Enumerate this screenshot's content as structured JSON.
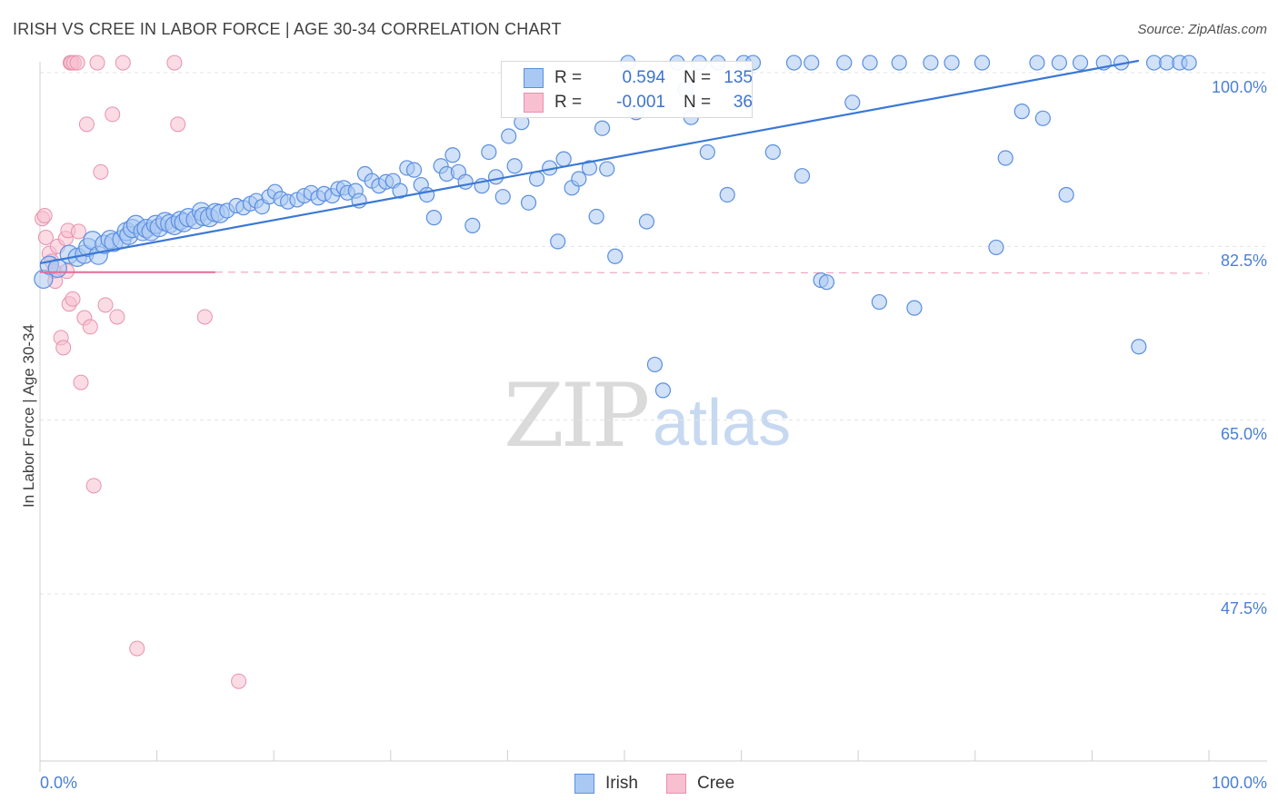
{
  "title": "IRISH VS CREE IN LABOR FORCE | AGE 30-34 CORRELATION CHART",
  "source": "Source: ZipAtlas.com",
  "watermark": {
    "zip": "ZIP",
    "atlas": "atlas"
  },
  "legend": {
    "irish": {
      "r_label": "R =",
      "r_value": "0.594",
      "n_label": "N =",
      "n_value": "135"
    },
    "cree": {
      "r_label": "R =",
      "r_value": "-0.001",
      "n_label": "N =",
      "n_value": "36"
    }
  },
  "bottom_legend": {
    "irish": "Irish",
    "cree": "Cree"
  },
  "colors": {
    "irish_fill": "#a9c8f2",
    "irish_stroke": "#5b8fe0",
    "irish_line": "#3a78d6",
    "cree_fill": "#f8bfd0",
    "cree_stroke": "#e891ae",
    "cree_line": "#e76a98",
    "tick_label": "#4a7fd6"
  },
  "chart_data": {
    "type": "scatter",
    "title": "IRISH VS CREE IN LABOR FORCE | AGE 30-34 CORRELATION CHART",
    "xlabel": "",
    "ylabel": "In Labor Force | Age 30-34",
    "xlim": [
      0,
      100
    ],
    "ylim": [
      31.5,
      101.5
    ],
    "x_tick_labels": [
      "0.0%",
      "100.0%"
    ],
    "y_ticks": [
      47.5,
      65.0,
      82.5,
      100.0
    ],
    "y_tick_labels": [
      "47.5%",
      "65.0%",
      "82.5%",
      "100.0%"
    ],
    "grid": true,
    "series": [
      {
        "name": "Irish",
        "r": 0.594,
        "n": 135,
        "trend": {
          "x": [
            0,
            94
          ],
          "y": [
            80.8,
            101.2
          ]
        },
        "points": [
          [
            0.3,
            79.2
          ],
          [
            0.8,
            80.6
          ],
          [
            1.5,
            80.3
          ],
          [
            2.5,
            81.7
          ],
          [
            3.2,
            81.4
          ],
          [
            3.8,
            81.7
          ],
          [
            4.1,
            82.4
          ],
          [
            4.5,
            83.1
          ],
          [
            5.0,
            81.6
          ],
          [
            5.5,
            82.7
          ],
          [
            6.0,
            83.2
          ],
          [
            6.3,
            82.9
          ],
          [
            7.0,
            83.2
          ],
          [
            7.4,
            84.0
          ],
          [
            7.6,
            83.6
          ],
          [
            7.9,
            84.3
          ],
          [
            8.2,
            84.7
          ],
          [
            8.8,
            84.0
          ],
          [
            9.1,
            84.3
          ],
          [
            9.5,
            84.0
          ],
          [
            9.9,
            84.7
          ],
          [
            10.2,
            84.4
          ],
          [
            10.7,
            85.0
          ],
          [
            11.1,
            84.8
          ],
          [
            11.5,
            84.6
          ],
          [
            12.0,
            85.1
          ],
          [
            12.3,
            84.9
          ],
          [
            12.7,
            85.4
          ],
          [
            13.3,
            85.2
          ],
          [
            13.8,
            86.0
          ],
          [
            14.0,
            85.5
          ],
          [
            14.5,
            85.4
          ],
          [
            15.0,
            85.9
          ],
          [
            15.4,
            85.8
          ],
          [
            16.0,
            86.1
          ],
          [
            16.8,
            86.6
          ],
          [
            17.4,
            86.4
          ],
          [
            18.0,
            86.8
          ],
          [
            18.5,
            87.1
          ],
          [
            19.0,
            86.5
          ],
          [
            19.6,
            87.5
          ],
          [
            20.1,
            88.0
          ],
          [
            20.6,
            87.3
          ],
          [
            21.2,
            87.0
          ],
          [
            22.0,
            87.2
          ],
          [
            22.6,
            87.6
          ],
          [
            23.2,
            87.9
          ],
          [
            23.8,
            87.4
          ],
          [
            24.3,
            87.8
          ],
          [
            25.0,
            87.6
          ],
          [
            25.5,
            88.3
          ],
          [
            26.0,
            88.4
          ],
          [
            26.3,
            87.9
          ],
          [
            27.0,
            88.1
          ],
          [
            27.3,
            87.1
          ],
          [
            27.8,
            89.8
          ],
          [
            28.4,
            89.1
          ],
          [
            29.0,
            88.6
          ],
          [
            29.6,
            89.0
          ],
          [
            30.2,
            89.1
          ],
          [
            30.8,
            88.1
          ],
          [
            31.4,
            90.4
          ],
          [
            32.0,
            90.2
          ],
          [
            32.6,
            88.7
          ],
          [
            33.1,
            87.7
          ],
          [
            33.7,
            85.4
          ],
          [
            34.3,
            90.6
          ],
          [
            34.8,
            89.8
          ],
          [
            35.3,
            91.7
          ],
          [
            35.8,
            90.0
          ],
          [
            36.4,
            89.0
          ],
          [
            37.0,
            84.6
          ],
          [
            37.8,
            88.6
          ],
          [
            38.4,
            92.0
          ],
          [
            39.0,
            89.5
          ],
          [
            39.6,
            87.5
          ],
          [
            40.1,
            93.6
          ],
          [
            40.6,
            90.6
          ],
          [
            41.2,
            95.0
          ],
          [
            41.8,
            86.9
          ],
          [
            42.5,
            89.3
          ],
          [
            43.6,
            90.4
          ],
          [
            44.3,
            83.0
          ],
          [
            44.8,
            91.3
          ],
          [
            45.5,
            88.4
          ],
          [
            46.1,
            89.3
          ],
          [
            47.0,
            90.4
          ],
          [
            47.6,
            85.5
          ],
          [
            48.1,
            94.4
          ],
          [
            48.5,
            90.3
          ],
          [
            49.2,
            81.5
          ],
          [
            50.3,
            101.0
          ],
          [
            51.0,
            96.0
          ],
          [
            51.9,
            85.0
          ],
          [
            52.6,
            70.6
          ],
          [
            53.3,
            68.0
          ],
          [
            54.5,
            101.0
          ],
          [
            55.2,
            98.3
          ],
          [
            55.7,
            95.5
          ],
          [
            56.4,
            101.0
          ],
          [
            57.1,
            92.0
          ],
          [
            58.0,
            101.0
          ],
          [
            58.8,
            87.7
          ],
          [
            60.2,
            101.0
          ],
          [
            61.0,
            101.0
          ],
          [
            62.7,
            92.0
          ],
          [
            64.5,
            101.0
          ],
          [
            65.2,
            89.6
          ],
          [
            66.0,
            101.0
          ],
          [
            66.8,
            79.1
          ],
          [
            67.3,
            78.9
          ],
          [
            68.8,
            101.0
          ],
          [
            69.5,
            97.0
          ],
          [
            71.0,
            101.0
          ],
          [
            71.8,
            76.9
          ],
          [
            73.5,
            101.0
          ],
          [
            74.8,
            76.3
          ],
          [
            76.2,
            101.0
          ],
          [
            78.0,
            101.0
          ],
          [
            80.6,
            101.0
          ],
          [
            81.8,
            82.4
          ],
          [
            82.6,
            91.4
          ],
          [
            84.0,
            96.1
          ],
          [
            85.3,
            101.0
          ],
          [
            85.8,
            95.4
          ],
          [
            87.2,
            101.0
          ],
          [
            87.8,
            87.7
          ],
          [
            89.0,
            101.0
          ],
          [
            91.0,
            101.0
          ],
          [
            92.5,
            101.0
          ],
          [
            94.0,
            72.4
          ],
          [
            95.3,
            101.0
          ],
          [
            96.4,
            101.0
          ],
          [
            97.5,
            101.0
          ],
          [
            98.3,
            101.0
          ]
        ]
      },
      {
        "name": "Cree",
        "r": -0.001,
        "n": 36,
        "trend": {
          "x": [
            0,
            100
          ],
          "y": [
            79.9,
            79.8
          ]
        },
        "points": [
          [
            0.2,
            85.3
          ],
          [
            0.4,
            85.6
          ],
          [
            0.5,
            83.4
          ],
          [
            0.8,
            81.8
          ],
          [
            1.0,
            81.0
          ],
          [
            1.2,
            80.0
          ],
          [
            1.3,
            79.0
          ],
          [
            1.5,
            82.5
          ],
          [
            1.8,
            73.3
          ],
          [
            2.0,
            72.3
          ],
          [
            2.2,
            83.3
          ],
          [
            2.3,
            80.0
          ],
          [
            2.4,
            84.1
          ],
          [
            2.5,
            76.7
          ],
          [
            2.6,
            101.0
          ],
          [
            2.7,
            101.0
          ],
          [
            2.8,
            77.2
          ],
          [
            2.9,
            101.0
          ],
          [
            3.2,
            101.0
          ],
          [
            3.3,
            84.0
          ],
          [
            3.5,
            68.8
          ],
          [
            3.8,
            75.3
          ],
          [
            4.0,
            94.8
          ],
          [
            4.3,
            74.4
          ],
          [
            4.6,
            58.4
          ],
          [
            4.9,
            101.0
          ],
          [
            5.2,
            90.0
          ],
          [
            5.6,
            76.6
          ],
          [
            6.2,
            95.8
          ],
          [
            6.6,
            75.4
          ],
          [
            7.1,
            101.0
          ],
          [
            8.3,
            42.0
          ],
          [
            11.5,
            101.0
          ],
          [
            11.8,
            94.8
          ],
          [
            14.1,
            75.4
          ],
          [
            17.0,
            38.7
          ]
        ]
      }
    ]
  }
}
